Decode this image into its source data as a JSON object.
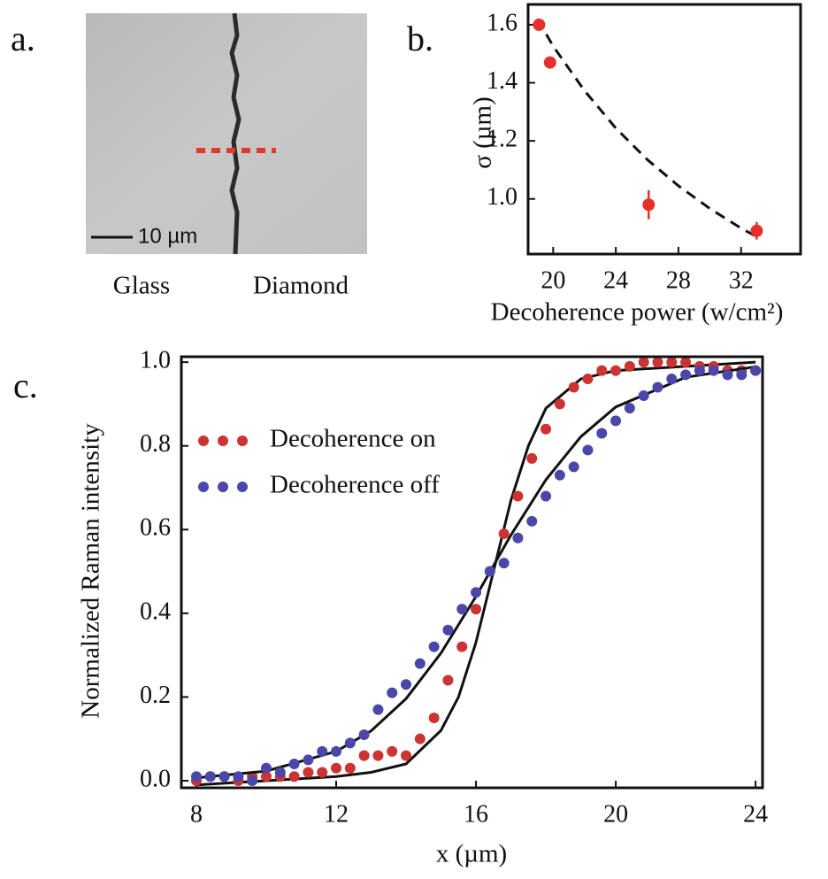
{
  "panel_a": {
    "label": "a.",
    "scale_bar": "10 µm",
    "left_label": "Glass",
    "right_label": "Diamond"
  },
  "chart_data": [
    {
      "type": "scatter",
      "panel_label": "b.",
      "x_label": "Decoherence power (w/cm²)",
      "y_label": "σ (µm)",
      "xlim": [
        18.4,
        35.8
      ],
      "ylim": [
        0.81,
        1.67
      ],
      "xticks": [
        20,
        24,
        28,
        32
      ],
      "yticks": [
        {
          "value": 1.0,
          "label": "1.0"
        },
        1.2,
        1.4,
        1.6
      ],
      "series": [
        {
          "color": "#e8302a",
          "x": [
            19.1,
            19.8,
            26.1,
            33.0
          ],
          "values": [
            1.6,
            1.47,
            0.98,
            0.89
          ],
          "errors": [
            0.01,
            0.01,
            0.05,
            0.03
          ],
          "fit": {
            "color": "#111111",
            "style": "dashed",
            "x": [
              19,
              20,
              22,
              24,
              26,
              28,
              30,
              32,
              33
            ],
            "values": [
              1.62,
              1.526,
              1.373,
              1.244,
              1.136,
              1.045,
              0.967,
              0.899,
              0.87
            ]
          }
        }
      ]
    },
    {
      "type": "scatter",
      "panel_label": "c.",
      "x_label": "x (µm)",
      "y_label": "Normalized Raman intensity",
      "xlim": [
        7.57,
        24.2
      ],
      "ylim": [
        -0.017,
        1.013
      ],
      "xticks": [
        8,
        12,
        16,
        20,
        24
      ],
      "yticks": [
        {
          "value": 0,
          "label": "0.0"
        },
        0.2,
        0.4,
        0.6,
        0.8,
        {
          "value": 1,
          "label": "1.0"
        }
      ],
      "legend": "upper left",
      "series": [
        {
          "name": "Decoherence on",
          "color": "#cc3333",
          "x": [
            8,
            8.4,
            8.8,
            9.2,
            9.6,
            10,
            10.4,
            10.8,
            11.2,
            11.6,
            12,
            12.4,
            12.8,
            13.2,
            13.6,
            14,
            14.4,
            14.8,
            15.2,
            15.6,
            16,
            16.4,
            16.8,
            17.2,
            17.6,
            18,
            18.4,
            18.8,
            19.2,
            19.6,
            20,
            20.4,
            20.8,
            21.2,
            21.6,
            22,
            22.4,
            22.8,
            23.2,
            23.6,
            24
          ],
          "values": [
            0.0,
            0.01,
            0.01,
            0.0,
            0.01,
            0.01,
            0.01,
            0.01,
            0.02,
            0.02,
            0.03,
            0.03,
            0.06,
            0.06,
            0.07,
            0.06,
            0.1,
            0.15,
            0.24,
            0.32,
            0.41,
            0.5,
            0.59,
            0.68,
            0.77,
            0.84,
            0.9,
            0.94,
            0.96,
            0.98,
            0.98,
            0.99,
            1.0,
            1.0,
            1.0,
            1.0,
            0.99,
            0.99,
            0.98,
            0.98,
            0.98
          ],
          "fit": {
            "color": "#111111",
            "style": "solid",
            "x": [
              8,
              10,
              12,
              13,
              14,
              15,
              15.5,
              16,
              16.5,
              17,
              17.5,
              18,
              19,
              20,
              22,
              24
            ],
            "values": [
              -0.01,
              0.0,
              0.01,
              0.02,
              0.04,
              0.12,
              0.2,
              0.33,
              0.5,
              0.67,
              0.8,
              0.89,
              0.96,
              0.98,
              0.99,
              1.0
            ]
          }
        },
        {
          "name": "Decoherence off",
          "color": "#4b47a8",
          "x": [
            8,
            8.4,
            8.8,
            9.2,
            9.6,
            10,
            10.4,
            10.8,
            11.2,
            11.6,
            12,
            12.4,
            12.8,
            13.2,
            13.6,
            14,
            14.4,
            14.8,
            15.2,
            15.6,
            16,
            16.4,
            16.8,
            17.2,
            17.6,
            18,
            18.4,
            18.8,
            19.2,
            19.6,
            20,
            20.4,
            20.8,
            21.2,
            21.6,
            22,
            22.4,
            22.8,
            23.2,
            23.6,
            24
          ],
          "values": [
            0.01,
            0.01,
            0.01,
            0.01,
            0.0,
            0.03,
            0.02,
            0.04,
            0.05,
            0.07,
            0.07,
            0.09,
            0.11,
            0.17,
            0.21,
            0.23,
            0.28,
            0.32,
            0.36,
            0.41,
            0.45,
            0.5,
            0.52,
            0.58,
            0.62,
            0.68,
            0.73,
            0.75,
            0.79,
            0.83,
            0.86,
            0.89,
            0.92,
            0.94,
            0.96,
            0.97,
            0.98,
            0.98,
            0.97,
            0.97,
            0.98
          ],
          "fit": {
            "color": "#111111",
            "style": "solid",
            "x": [
              8,
              10,
              12,
              13,
              14,
              15,
              16,
              17,
              18,
              19,
              20,
              22,
              24
            ],
            "values": [
              0.007,
              0.023,
              0.07,
              0.119,
              0.196,
              0.305,
              0.44,
              0.587,
              0.719,
              0.822,
              0.893,
              0.964,
              0.989
            ]
          }
        }
      ]
    }
  ]
}
